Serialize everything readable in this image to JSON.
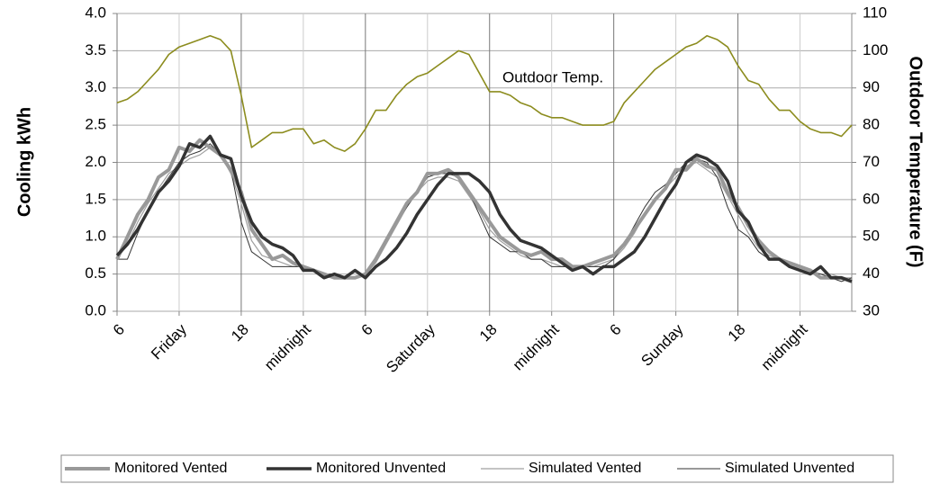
{
  "chart_data": {
    "type": "line",
    "y_label": "Cooling kWh",
    "y2_label": "Outdoor Temperature (F)",
    "annotation": "Outdoor Temp.",
    "categories": [
      "6",
      null,
      null,
      null,
      null,
      null,
      "Friday",
      null,
      null,
      null,
      null,
      null,
      "18",
      null,
      null,
      null,
      null,
      null,
      "midnight",
      null,
      null,
      null,
      null,
      null,
      "6",
      null,
      null,
      null,
      null,
      null,
      "Saturday",
      null,
      null,
      null,
      null,
      null,
      "18",
      null,
      null,
      null,
      null,
      null,
      "midnight",
      null,
      null,
      null,
      null,
      null,
      "6",
      null,
      null,
      null,
      null,
      null,
      "Sunday",
      null,
      null,
      null,
      null,
      null,
      "18",
      null,
      null,
      null,
      null,
      null,
      "midnight",
      null,
      null,
      null,
      null,
      null
    ],
    "ylim": [
      0,
      4
    ],
    "yticks": [
      {
        "value": 0,
        "label": "0.0"
      },
      0.5,
      {
        "value": 1,
        "label": "1.0"
      },
      1.5,
      {
        "value": 2,
        "label": "2.0"
      },
      2.5,
      {
        "value": 3,
        "label": "3.0"
      },
      3.5,
      {
        "value": 4,
        "label": "4.0"
      }
    ],
    "y2lim": [
      30,
      110
    ],
    "y2ticks": [
      30,
      40,
      50,
      60,
      70,
      80,
      90,
      100,
      110
    ],
    "grid": true,
    "legend": "bottom",
    "series": [
      {
        "name": "Monitored Vented",
        "color": "#999999",
        "width": 4,
        "values": [
          0.7,
          1.0,
          1.3,
          1.5,
          1.8,
          1.9,
          2.2,
          2.15,
          2.3,
          2.2,
          2.1,
          1.9,
          1.6,
          1.1,
          0.9,
          0.7,
          0.75,
          0.65,
          0.6,
          0.55,
          0.5,
          0.45,
          0.45,
          0.45,
          0.5,
          0.7,
          0.95,
          1.2,
          1.45,
          1.6,
          1.85,
          1.85,
          1.9,
          1.8,
          1.6,
          1.4,
          1.2,
          1.0,
          0.9,
          0.8,
          0.75,
          0.8,
          0.7,
          0.7,
          0.6,
          0.6,
          0.65,
          0.7,
          0.75,
          0.9,
          1.1,
          1.3,
          1.5,
          1.65,
          1.9,
          1.9,
          2.05,
          1.95,
          1.9,
          1.6,
          1.4,
          1.15,
          0.95,
          0.8,
          0.7,
          0.65,
          0.6,
          0.55,
          0.45,
          0.45,
          0.45,
          0.4
        ]
      },
      {
        "name": "Monitored Unvented",
        "color": "#333333",
        "width": 3.5,
        "values": [
          0.75,
          0.9,
          1.1,
          1.35,
          1.6,
          1.75,
          1.95,
          2.25,
          2.2,
          2.35,
          2.1,
          2.05,
          1.55,
          1.2,
          1.0,
          0.9,
          0.85,
          0.75,
          0.55,
          0.55,
          0.45,
          0.5,
          0.45,
          0.55,
          0.45,
          0.6,
          0.7,
          0.85,
          1.05,
          1.3,
          1.5,
          1.7,
          1.85,
          1.85,
          1.85,
          1.75,
          1.6,
          1.3,
          1.1,
          0.95,
          0.9,
          0.85,
          0.75,
          0.65,
          0.55,
          0.6,
          0.5,
          0.6,
          0.6,
          0.7,
          0.8,
          1.0,
          1.25,
          1.5,
          1.7,
          2.0,
          2.1,
          2.05,
          1.95,
          1.75,
          1.35,
          1.2,
          0.9,
          0.7,
          0.7,
          0.6,
          0.55,
          0.5,
          0.6,
          0.45,
          0.45,
          0.4
        ]
      },
      {
        "name": "Simulated Vented",
        "color": "#a0a0a0",
        "width": 1.2,
        "values": [
          0.7,
          0.9,
          1.2,
          1.45,
          1.65,
          1.85,
          1.95,
          2.05,
          2.1,
          2.2,
          2.1,
          1.85,
          1.45,
          0.95,
          0.75,
          0.7,
          0.65,
          0.6,
          0.6,
          0.55,
          0.5,
          0.5,
          0.45,
          0.45,
          0.5,
          0.65,
          0.9,
          1.15,
          1.4,
          1.6,
          1.75,
          1.8,
          1.8,
          1.75,
          1.55,
          1.35,
          1.1,
          0.95,
          0.85,
          0.75,
          0.7,
          0.7,
          0.65,
          0.6,
          0.6,
          0.6,
          0.6,
          0.65,
          0.7,
          0.85,
          1.05,
          1.3,
          1.5,
          1.65,
          1.8,
          1.95,
          2.0,
          1.9,
          1.8,
          1.55,
          1.3,
          1.05,
          0.85,
          0.75,
          0.7,
          0.65,
          0.6,
          0.55,
          0.5,
          0.5,
          0.45,
          0.45
        ]
      },
      {
        "name": "Simulated Unvented",
        "color": "#333333",
        "width": 1,
        "values": [
          0.7,
          0.7,
          1.05,
          1.35,
          1.6,
          1.8,
          2.0,
          2.1,
          2.15,
          2.25,
          2.1,
          1.9,
          1.2,
          0.8,
          0.7,
          0.6,
          0.6,
          0.6,
          0.6,
          0.55,
          0.5,
          0.5,
          0.45,
          0.45,
          0.5,
          0.7,
          0.95,
          1.2,
          1.4,
          1.6,
          1.8,
          1.85,
          1.85,
          1.8,
          1.6,
          1.3,
          1.0,
          0.9,
          0.8,
          0.8,
          0.7,
          0.7,
          0.6,
          0.6,
          0.6,
          0.6,
          0.6,
          0.6,
          0.7,
          0.9,
          1.15,
          1.4,
          1.6,
          1.7,
          1.85,
          2.0,
          2.05,
          2.0,
          1.8,
          1.4,
          1.1,
          1.0,
          0.8,
          0.7,
          0.7,
          0.6,
          0.55,
          0.5,
          0.5,
          0.45,
          0.4,
          0.45
        ]
      },
      {
        "axis": "y2",
        "color": "#8c8c1e",
        "width": 1.6,
        "values": [
          86,
          87,
          89,
          92,
          95,
          99,
          101,
          102,
          103,
          104,
          103,
          100,
          88,
          74,
          76,
          78,
          78,
          79,
          79,
          75,
          76,
          74,
          73,
          75,
          79,
          84,
          84,
          88,
          91,
          93,
          94,
          96,
          98,
          100,
          99,
          94,
          89,
          89,
          88,
          86,
          85,
          83,
          82,
          82,
          81,
          80,
          80,
          80,
          81,
          86,
          89,
          92,
          95,
          97,
          99,
          101,
          102,
          104,
          103,
          101,
          96,
          92,
          91,
          87,
          84,
          84,
          81,
          79,
          78,
          78,
          77,
          80
        ]
      }
    ]
  }
}
